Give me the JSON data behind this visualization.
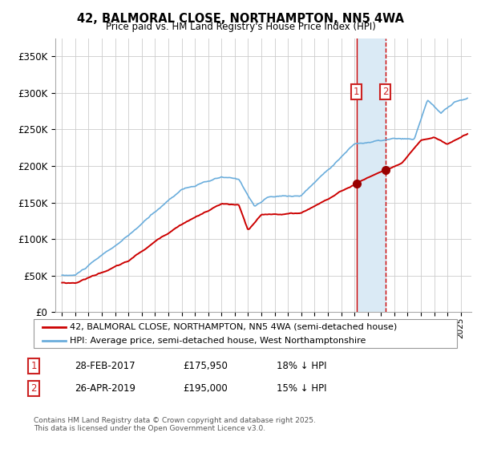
{
  "title": "42, BALMORAL CLOSE, NORTHAMPTON, NN5 4WA",
  "subtitle": "Price paid vs. HM Land Registry's House Price Index (HPI)",
  "legend_line1": "42, BALMORAL CLOSE, NORTHAMPTON, NN5 4WA (semi-detached house)",
  "legend_line2": "HPI: Average price, semi-detached house, West Northamptonshire",
  "annotation1_date": "28-FEB-2017",
  "annotation1_price": "£175,950",
  "annotation1_hpi": "18% ↓ HPI",
  "annotation2_date": "26-APR-2019",
  "annotation2_price": "£195,000",
  "annotation2_hpi": "15% ↓ HPI",
  "footnote": "Contains HM Land Registry data © Crown copyright and database right 2025.\nThis data is licensed under the Open Government Licence v3.0.",
  "hpi_color": "#6aaddc",
  "price_color": "#cc0000",
  "marker_color": "#990000",
  "annotation_box_color": "#cc2222",
  "highlight_color": "#daeaf5",
  "vline1_color": "#cc0000",
  "vline2_color": "#cc0000",
  "ylim": [
    0,
    375000
  ],
  "yticks": [
    0,
    50000,
    100000,
    150000,
    200000,
    250000,
    300000,
    350000
  ],
  "grid_color": "#cccccc",
  "bg_color": "#ffffff",
  "purchase1_year": 2017.15,
  "purchase2_year": 2019.32,
  "purchase1_price": 175950,
  "purchase2_price": 195000
}
